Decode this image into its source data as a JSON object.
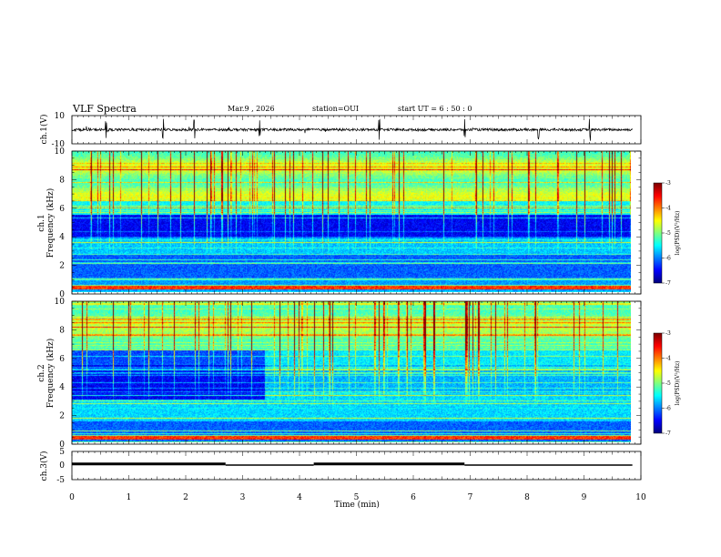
{
  "header": {
    "title": "VLF Spectra",
    "date": "Mar.9 , 2026",
    "station": "station=OUI",
    "start": "start UT = 6 : 50 : 0"
  },
  "chart_data": [
    {
      "type": "line",
      "name": "ch1-waveform",
      "ylabel": "ch.1(V)",
      "ylim": [
        -10,
        10
      ],
      "yticks": [
        "10",
        "-10"
      ],
      "xlim": [
        0,
        10
      ],
      "baseline": 0,
      "burst_times_min": [
        0.6,
        1.6,
        2.15,
        3.3,
        5.4,
        6.9,
        8.2,
        9.1
      ]
    },
    {
      "type": "heatmap",
      "name": "ch1-spectrogram",
      "ylabel": "ch.1 Frequency (kHz)",
      "ylim": [
        0,
        10
      ],
      "yticks": [
        "0",
        "2",
        "4",
        "6",
        "8",
        "10"
      ],
      "xlim": [
        0,
        9.85
      ],
      "colorbar": {
        "label": "log(PSD)(V²/Hz)",
        "range": [
          -7,
          -3
        ],
        "ticks": [
          "-3",
          "-4",
          "-5",
          "-6",
          "-7"
        ]
      }
    },
    {
      "type": "heatmap",
      "name": "ch2-spectrogram",
      "ylabel": "ch.2 Frequency (kHz)",
      "ylim": [
        0,
        10
      ],
      "yticks": [
        "0",
        "2",
        "4",
        "6",
        "8",
        "10"
      ],
      "xlim": [
        0,
        9.85
      ],
      "colorbar": {
        "label": "log(PSD)(V²/Hz)",
        "range": [
          -7,
          -3
        ],
        "ticks": [
          "-3",
          "-4",
          "-5",
          "-6",
          "-7"
        ]
      }
    },
    {
      "type": "line",
      "name": "ch3-voltage",
      "ylabel": "ch.3(V)",
      "ylim": [
        -5,
        5
      ],
      "yticks": [
        "5",
        "0",
        "-5"
      ],
      "segments": [
        {
          "x": [
            0,
            2.7
          ],
          "y": 0.55
        },
        {
          "x": [
            2.7,
            4.25
          ],
          "y": 0.15
        },
        {
          "x": [
            4.25,
            6.9
          ],
          "y": 0.55
        },
        {
          "x": [
            6.9,
            9.85
          ],
          "y": 0.15
        }
      ]
    }
  ],
  "xaxis": {
    "label": "Time (min)",
    "range": [
      0,
      10
    ],
    "ticks": [
      "0",
      "1",
      "2",
      "3",
      "4",
      "5",
      "6",
      "7",
      "8",
      "9",
      "10"
    ]
  }
}
